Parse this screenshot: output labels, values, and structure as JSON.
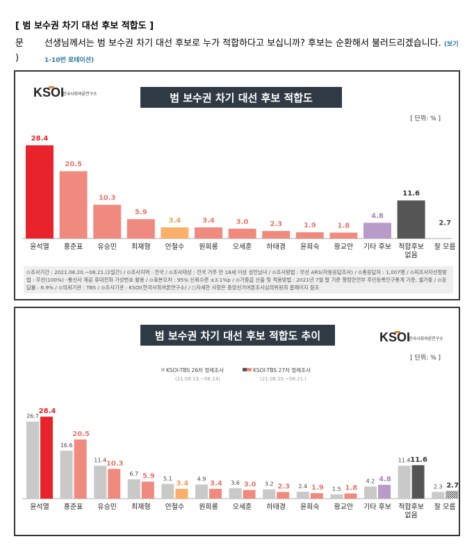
{
  "header": {
    "title": "[ 범 보수권 차기 대선 후보 적합도 ]",
    "q_label": "문 )",
    "question": "선생님께서는 범 보수권 차기 대선 후보로 누가 적합하다고 보십니까? 후보는 순환해서 불러드리겠습니다.",
    "note": "(보기 1-10번 로테이션)"
  },
  "logo": {
    "text": "KSOI",
    "sub": "한국사회여론연구소"
  },
  "methodology": "⊙조사기간 : 2021.08.20.~08.21.(2일간) / ⊙조사지역 : 전국 / ⊙조사대상 : 전국 거주 만 18세 이상 성인남녀 / ⊙조사방법 : 무선 ARS(자동응답조사) / ⊙총응답자 : 1,007명 / ⊙피조사자선정방법 : 무선(100%) –통신사 제공 휴대전화 가상번호 활용 / ⊙표본오차 : 95% 신뢰수준 ±3.1%p / ⊙가중값 산출 및 적용방법 : 2021년 7월 말 기준 행정안전부 주민등록인구통계 기준, 셀가중 / ⊙응답률 : 6.9% / ⊙의뢰기관 : TBS / ⊙조사기관 : KSOI(한국사회여론연구소) / ○자세한 사항은 중앙선거여론조사심의위원회 홈페이지 참조",
  "chart_data": [
    {
      "type": "bar",
      "title": "범 보수권 차기 대선 후보 적합도",
      "unit": "[ 단위: % ]",
      "categories": [
        "윤석열",
        "홍준표",
        "유승민",
        "최재형",
        "안철수",
        "원희룡",
        "오세훈",
        "하태경",
        "윤희숙",
        "황교안",
        "기타 후보",
        "적합후보 없음",
        "잘 모름"
      ],
      "values": [
        28.4,
        20.5,
        10.3,
        5.9,
        3.4,
        3.4,
        3.0,
        2.3,
        1.9,
        1.8,
        4.8,
        11.6,
        2.7
      ],
      "colors": [
        "#e8232b",
        "#f08a7e",
        "#f08a7e",
        "#f08a7e",
        "#f9b16a",
        "#f08a7e",
        "#f08a7e",
        "#f08a7e",
        "#f08a7e",
        "#f08a7e",
        "#b89bc8",
        "#555555",
        "hatch"
      ]
    },
    {
      "type": "bar",
      "title": "범 보수권 차기 대선 후보 적합도 추이",
      "unit": "[ 단위: % ]",
      "categories": [
        "윤석열",
        "홍준표",
        "유승민",
        "최재형",
        "안철수",
        "원희룡",
        "오세훈",
        "하태경",
        "윤희숙",
        "황교안",
        "기타 후보",
        "적합후보 없음",
        "잘 모름"
      ],
      "series": [
        {
          "name": "KSOI-TBS 26차 정례조사",
          "period": "(21.08.13.~08.14)",
          "values": [
            26.7,
            16.6,
            11.4,
            6.7,
            5.1,
            4.9,
            3.6,
            3.2,
            2.4,
            1.5,
            4.2,
            11.4,
            2.3
          ],
          "color": "#c9c9c9"
        },
        {
          "name": "KSOI-TBS 27차 정례조사",
          "period": "(21.08.20.~08.21.)",
          "values": [
            28.4,
            20.5,
            10.3,
            5.9,
            3.4,
            3.4,
            3.0,
            2.3,
            1.9,
            1.8,
            4.8,
            11.6,
            2.7
          ]
        }
      ]
    }
  ]
}
